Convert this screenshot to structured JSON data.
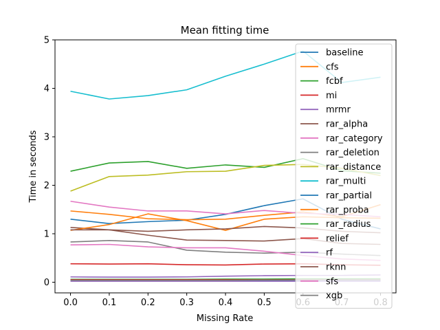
{
  "chart_data": {
    "type": "line",
    "title": "Mean fitting time",
    "xlabel": "Missing Rate",
    "ylabel": "Time in seconds",
    "xlim": [
      -0.04,
      0.84
    ],
    "ylim": [
      -0.22,
      5.0
    ],
    "x_ticks": [
      0.0,
      0.1,
      0.2,
      0.3,
      0.4,
      0.5,
      0.6,
      0.7,
      0.8
    ],
    "x_tick_labels": [
      "0.0",
      "0.1",
      "0.2",
      "0.3",
      "0.4",
      "0.5",
      "0.6",
      "0.7",
      "0.8"
    ],
    "y_ticks": [
      0,
      1,
      2,
      3,
      4,
      5
    ],
    "y_tick_labels": [
      "0",
      "1",
      "2",
      "3",
      "4",
      "5"
    ],
    "grid": false,
    "legend_position": "right",
    "x": [
      0.0,
      0.1,
      0.2,
      0.3,
      0.4,
      0.5,
      0.6,
      0.7,
      0.8
    ],
    "series": [
      {
        "name": "baseline",
        "color": "#1f77b4",
        "values": [
          1.3,
          1.21,
          1.25,
          1.28,
          1.4,
          1.58,
          1.72,
          1.3,
          1.1
        ]
      },
      {
        "name": "cfs",
        "color": "#ff7f0e",
        "values": [
          1.47,
          1.4,
          1.31,
          1.29,
          1.3,
          1.38,
          1.45,
          1.35,
          1.6
        ]
      },
      {
        "name": "fcbf",
        "color": "#2ca02c",
        "values": [
          2.29,
          2.46,
          2.49,
          2.35,
          2.42,
          2.37,
          2.55,
          2.3,
          2.25
        ]
      },
      {
        "name": "mi",
        "color": "#d62728",
        "values": [
          0.38,
          0.375,
          0.38,
          0.36,
          0.355,
          0.375,
          0.38,
          0.36,
          0.35
        ]
      },
      {
        "name": "mrmr",
        "color": "#9467bd",
        "values": [
          0.11,
          0.105,
          0.105,
          0.11,
          0.125,
          0.135,
          0.14,
          0.14,
          0.15
        ]
      },
      {
        "name": "rar_alpha",
        "color": "#8c564b",
        "values": [
          1.13,
          1.08,
          0.97,
          0.87,
          0.86,
          0.85,
          0.9,
          0.8,
          0.78
        ]
      },
      {
        "name": "rar_category",
        "color": "#e377c2",
        "values": [
          1.67,
          1.55,
          1.47,
          1.47,
          1.41,
          1.48,
          1.42,
          1.4,
          1.35
        ]
      },
      {
        "name": "rar_deletion",
        "color": "#7f7f7f",
        "values": [
          0.83,
          0.86,
          0.83,
          0.66,
          0.62,
          0.6,
          0.62,
          0.58,
          0.55
        ]
      },
      {
        "name": "rar_distance",
        "color": "#bcbd22",
        "values": [
          1.88,
          2.18,
          2.21,
          2.28,
          2.29,
          2.41,
          2.43,
          2.35,
          2.2
        ]
      },
      {
        "name": "rar_multi",
        "color": "#17becf",
        "values": [
          3.94,
          3.78,
          3.85,
          3.97,
          4.25,
          4.5,
          4.77,
          4.12,
          4.23
        ]
      },
      {
        "name": "rar_partial",
        "color": "#1f77b4",
        "values": [
          0.03,
          0.03,
          0.03,
          0.035,
          0.035,
          0.035,
          0.04,
          0.04,
          0.04
        ]
      },
      {
        "name": "rar_proba",
        "color": "#ff7f0e",
        "values": [
          1.07,
          1.19,
          1.41,
          1.27,
          1.07,
          1.3,
          1.35,
          1.33,
          1.32
        ]
      },
      {
        "name": "rar_radius",
        "color": "#2ca02c",
        "values": [
          0.06,
          0.06,
          0.06,
          0.06,
          0.065,
          0.065,
          0.07,
          0.07,
          0.07
        ]
      },
      {
        "name": "relief",
        "color": "#d62728",
        "values": [
          0.05,
          0.05,
          0.05,
          0.05,
          0.05,
          0.05,
          0.05,
          0.05,
          0.05
        ]
      },
      {
        "name": "rf",
        "color": "#9467bd",
        "values": [
          0.02,
          0.02,
          0.02,
          0.02,
          0.02,
          0.02,
          0.02,
          0.02,
          0.02
        ]
      },
      {
        "name": "rknn",
        "color": "#8c564b",
        "values": [
          1.08,
          1.08,
          1.05,
          1.08,
          1.1,
          1.15,
          1.12,
          1.05,
          1.02
        ]
      },
      {
        "name": "sfs",
        "color": "#e377c2",
        "values": [
          0.77,
          0.78,
          0.73,
          0.71,
          0.71,
          0.64,
          0.55,
          0.48,
          0.45
        ]
      },
      {
        "name": "xgb",
        "color": "#7f7f7f",
        "values": [
          0.04,
          0.04,
          0.04,
          0.04,
          0.04,
          0.045,
          0.045,
          0.05,
          0.05
        ]
      }
    ]
  }
}
